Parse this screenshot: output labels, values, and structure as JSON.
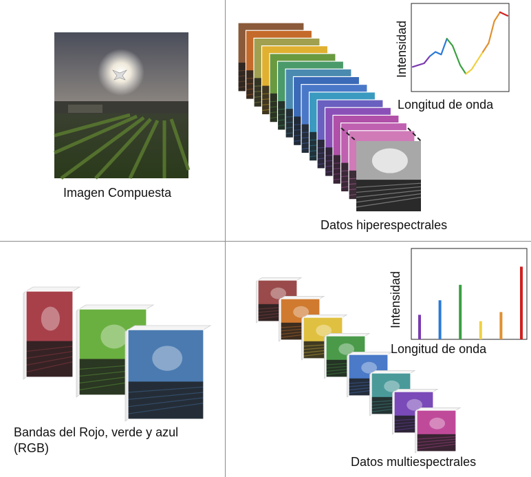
{
  "panels": {
    "composite": {
      "caption": "Imagen Compuesta"
    },
    "hyperspectral": {
      "caption": "Datos hiperespectrales",
      "chart_xlabel": "Longitud de onda",
      "chart_ylabel": "Intensidad",
      "band_colors": [
        "#8a5a3a",
        "#c46a2a",
        "#a0a050",
        "#e0b030",
        "#6a9a40",
        "#4a9a6a",
        "#4a8ab0",
        "#3a6ab8",
        "#4a78c8",
        "#3a9ac0",
        "#6a60c0",
        "#8a50b8",
        "#b050a8",
        "#c060b0",
        "#d07ab8"
      ]
    },
    "rgb": {
      "caption_line1": "Bandas del Rojo, verde y azul",
      "caption_line2": "(RGB)",
      "band_colors": [
        "#a8404a",
        "#6ab040",
        "#4a7ab0"
      ]
    },
    "multispectral": {
      "caption": "Datos multiespectrales",
      "chart_xlabel": "Longitud de onda",
      "chart_ylabel": "Intensidad",
      "band_colors": [
        "#9a4a4a",
        "#d07a30",
        "#e0c040",
        "#4a9a4a",
        "#4a7ac8",
        "#4a9a9a",
        "#7a4ab8",
        "#c04a9a"
      ]
    }
  },
  "chart_data": [
    {
      "type": "line",
      "xlabel": "Longitud de onda",
      "ylabel": "Intensidad",
      "series": [
        {
          "x": [
            0,
            0.06,
            0.12,
            0.18,
            0.24,
            0.3,
            0.36,
            0.42,
            0.5,
            0.56,
            0.62,
            0.68,
            0.74,
            0.8,
            0.86,
            0.92,
            0.98,
            1.0
          ],
          "y": [
            0.28,
            0.3,
            0.32,
            0.4,
            0.45,
            0.42,
            0.6,
            0.52,
            0.3,
            0.2,
            0.25,
            0.35,
            0.45,
            0.55,
            0.8,
            0.9,
            0.87,
            0.86
          ]
        }
      ],
      "segment_colors": [
        "#7a3ab0",
        "#2a7ad8",
        "#3aa040",
        "#f0d040",
        "#e09030",
        "#d02020"
      ]
    },
    {
      "type": "bar",
      "xlabel": "Longitud de onda",
      "ylabel": "Intensidad",
      "values": [
        0.27,
        0.43,
        0.6,
        0.2,
        0.3,
        0.8
      ],
      "colors": [
        "#7a3ab0",
        "#2a7ad8",
        "#3aa040",
        "#f0d040",
        "#e09030",
        "#d02020"
      ]
    }
  ]
}
